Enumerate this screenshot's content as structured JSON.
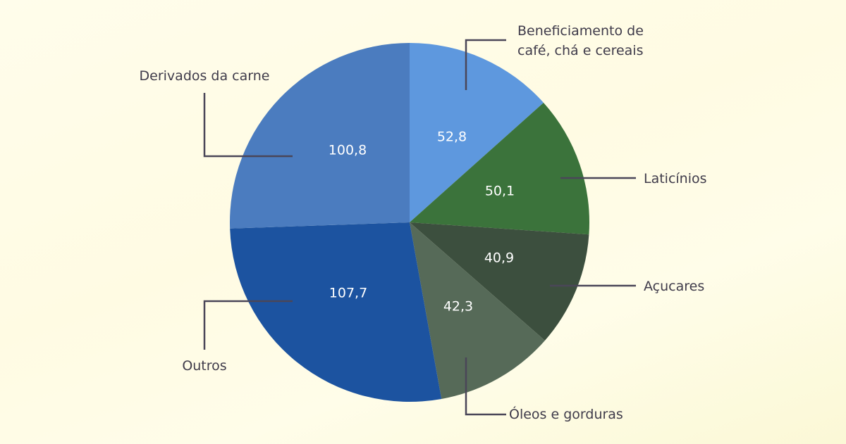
{
  "chart_data": {
    "type": "pie",
    "title": "",
    "slices": [
      {
        "label_lines": [
          "Beneficiamento de",
          "café, chá e cereais"
        ],
        "value": 52.8,
        "display": "52,8",
        "color": "#5e98de"
      },
      {
        "label_lines": [
          "Laticínios"
        ],
        "value": 50.1,
        "display": "50,1",
        "color": "#3b733b"
      },
      {
        "label_lines": [
          "Açucares"
        ],
        "value": 40.9,
        "display": "40,9",
        "color": "#3c4f3e"
      },
      {
        "label_lines": [
          "Óleos e gorduras"
        ],
        "value": 42.3,
        "display": "42,3",
        "color": "#566a58"
      },
      {
        "label_lines": [
          "Outros"
        ],
        "value": 107.7,
        "display": "107,7",
        "color": "#1c53a0"
      },
      {
        "label_lines": [
          "Derivados da carne"
        ],
        "value": 100.8,
        "display": "100,8",
        "color": "#4b7cbf"
      }
    ],
    "start": "top",
    "direction": "clockwise",
    "legend": "none"
  }
}
